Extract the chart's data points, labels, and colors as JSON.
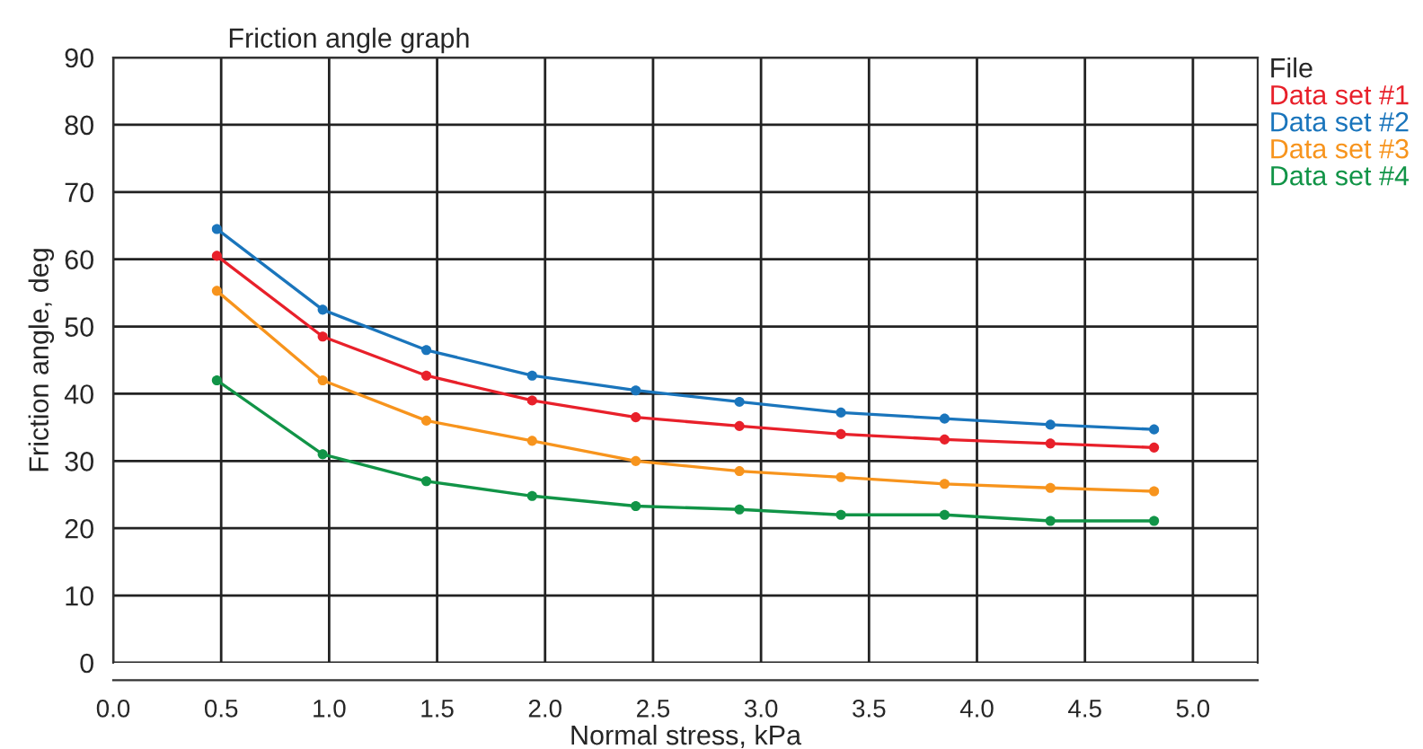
{
  "chart_data": {
    "type": "line",
    "title": "Friction angle graph",
    "xlabel": "Normal stress, kPa",
    "ylabel": "Friction angle, deg",
    "legend_title": "File",
    "x": [
      0.48,
      0.97,
      1.45,
      1.94,
      2.42,
      2.9,
      3.37,
      3.85,
      4.34,
      4.82
    ],
    "series": [
      {
        "name": "Data set #1",
        "color": "#e8202a",
        "values": [
          60.5,
          48.5,
          42.7,
          39,
          36.5,
          35.2,
          34,
          33.2,
          32.6,
          32
        ]
      },
      {
        "name": "Data set #2",
        "color": "#1a75bc",
        "values": [
          64.5,
          52.5,
          46.5,
          42.7,
          40.5,
          38.8,
          37.2,
          36.3,
          35.4,
          34.7
        ]
      },
      {
        "name": "Data set #3",
        "color": "#f7941d",
        "values": [
          55.3,
          42,
          36,
          33,
          30,
          28.5,
          27.6,
          26.6,
          26,
          25.5
        ]
      },
      {
        "name": "Data set #4",
        "color": "#119447",
        "values": [
          42,
          31,
          27,
          24.8,
          23.3,
          22.8,
          22,
          22,
          21.1,
          21.1
        ]
      }
    ],
    "xlim": [
      0,
      5.3
    ],
    "ylim": [
      0,
      90
    ],
    "xticks": [
      {
        "value": 0,
        "label": "0.0"
      },
      0.5,
      {
        "value": 1,
        "label": "1.0"
      },
      1.5,
      {
        "value": 2,
        "label": "2.0"
      },
      2.5,
      {
        "value": 3,
        "label": "3.0"
      },
      3.5,
      {
        "value": 4,
        "label": "4.0"
      },
      4.5,
      {
        "value": 5,
        "label": "5.0"
      }
    ],
    "yticks": [
      0,
      10,
      20,
      30,
      40,
      50,
      60,
      70,
      80,
      90
    ],
    "grid": true,
    "legend": "top right",
    "marker": "circle",
    "line_style": "solid"
  }
}
